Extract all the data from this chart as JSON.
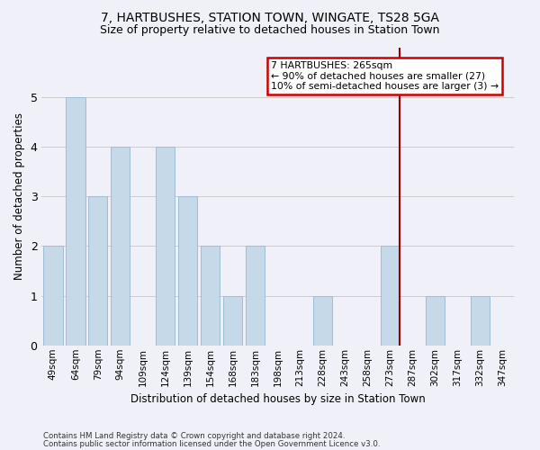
{
  "title1": "7, HARTBUSHES, STATION TOWN, WINGATE, TS28 5GA",
  "title2": "Size of property relative to detached houses in Station Town",
  "xlabel": "Distribution of detached houses by size in Station Town",
  "ylabel": "Number of detached properties",
  "categories": [
    "49sqm",
    "64sqm",
    "79sqm",
    "94sqm",
    "109sqm",
    "124sqm",
    "139sqm",
    "154sqm",
    "168sqm",
    "183sqm",
    "198sqm",
    "213sqm",
    "228sqm",
    "243sqm",
    "258sqm",
    "273sqm",
    "287sqm",
    "302sqm",
    "317sqm",
    "332sqm",
    "347sqm"
  ],
  "values": [
    2,
    5,
    3,
    4,
    0,
    4,
    3,
    2,
    1,
    2,
    0,
    0,
    1,
    0,
    0,
    2,
    0,
    1,
    0,
    1,
    0
  ],
  "bar_color": "#c6d9e8",
  "bar_edgecolor": "#9fbdd4",
  "grid_color": "#cccccc",
  "vline_index": 15,
  "vline_color": "#990000",
  "annotation_text": "7 HARTBUSHES: 265sqm\n← 90% of detached houses are smaller (27)\n10% of semi-detached houses are larger (3) →",
  "annotation_box_edgecolor": "#cc0000",
  "footer1": "Contains HM Land Registry data © Crown copyright and database right 2024.",
  "footer2": "Contains public sector information licensed under the Open Government Licence v3.0.",
  "ylim": [
    0,
    6
  ],
  "yticks": [
    0,
    1,
    2,
    3,
    4,
    5,
    6
  ],
  "background_color": "#f0f0f8",
  "plot_background": "#f0f0f8"
}
